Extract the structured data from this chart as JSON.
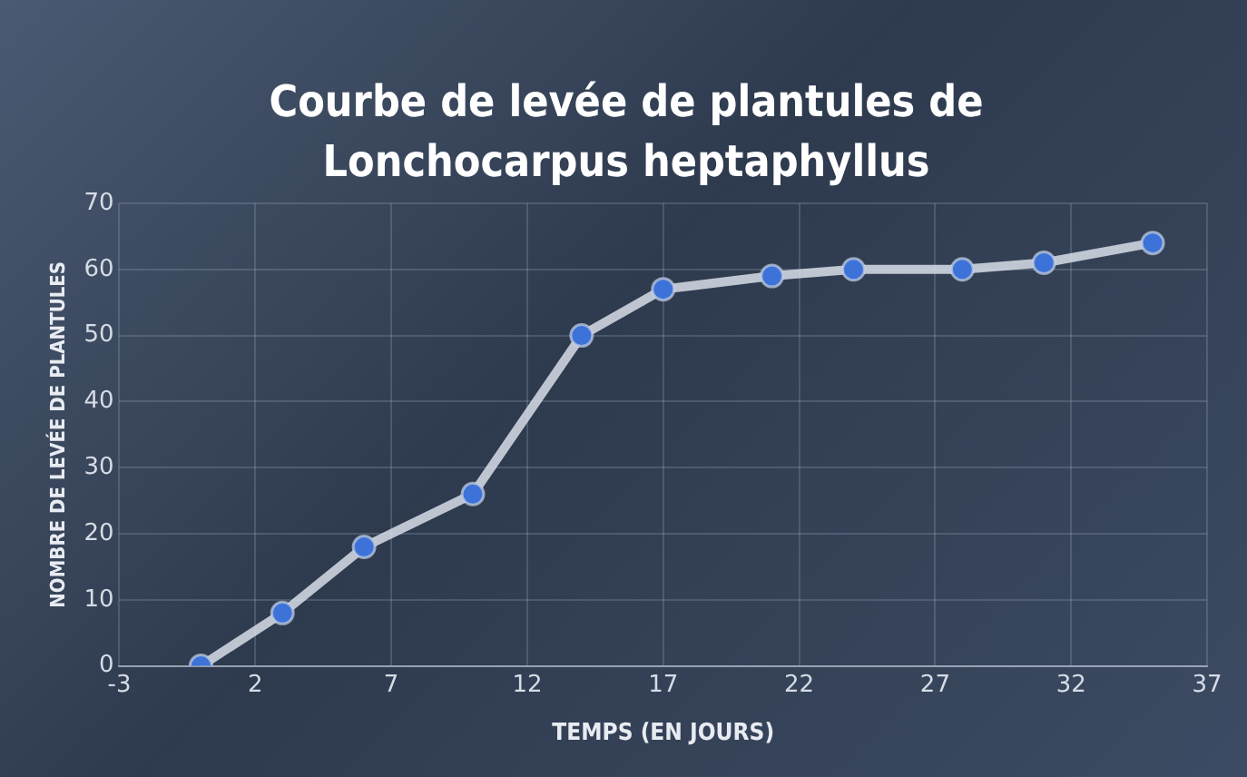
{
  "chart_data": {
    "type": "line",
    "title": "Courbe de levée de plantules de Lonchocarpus heptaphyllus",
    "xlabel": "TEMPS (EN JOURS)",
    "ylabel": "NOMBRE DE LEVÉE DE PLANTULES",
    "series": [
      {
        "color": "#3d72d8",
        "x": [
          0,
          3,
          6,
          10,
          14,
          17,
          21,
          24,
          28,
          31,
          35
        ],
        "values": [
          0,
          8,
          18,
          26,
          50,
          57,
          59,
          60,
          60,
          61,
          64
        ]
      }
    ],
    "xlim": [
      -3,
      37
    ],
    "xticks": [
      -3,
      2,
      7,
      12,
      17,
      22,
      27,
      32,
      37
    ],
    "ylim": [
      0,
      70
    ],
    "yticks": [
      0,
      10,
      20,
      30,
      40,
      50,
      60,
      70
    ],
    "grid": true,
    "legend": false,
    "marker": "circle",
    "line_style": "solid"
  }
}
